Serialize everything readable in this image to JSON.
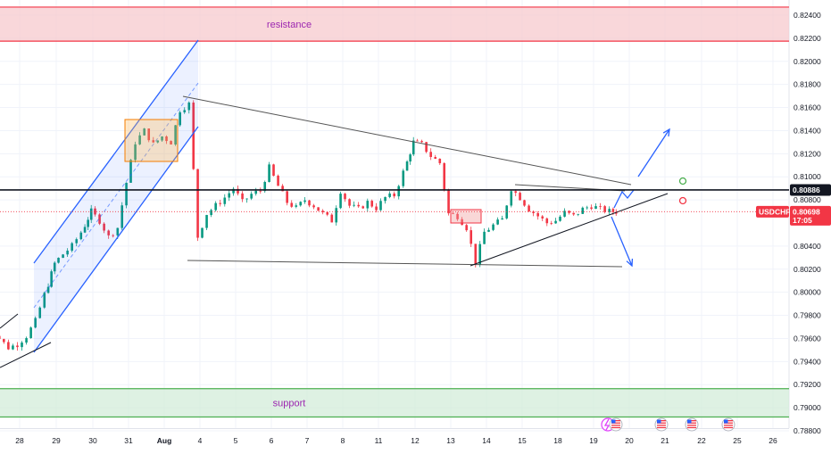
{
  "chart_data": {
    "type": "candlestick",
    "symbol": "USDCHF",
    "y_ticks": [
      "0.82400",
      "0.82200",
      "0.82000",
      "0.81800",
      "0.81600",
      "0.81400",
      "0.81200",
      "0.81000",
      "0.80800",
      "0.80400",
      "0.80200",
      "0.80000",
      "0.79800",
      "0.79600",
      "0.79400",
      "0.79200",
      "0.79000",
      "0.78800"
    ],
    "x_ticks": [
      "28",
      "29",
      "30",
      "31",
      "Aug",
      "4",
      "5",
      "6",
      "7",
      "8",
      "11",
      "12",
      "13",
      "14",
      "15",
      "18",
      "19",
      "20",
      "21",
      "22",
      "25",
      "26"
    ],
    "ylim": [
      0.7877,
      0.8252
    ],
    "current_price": "0.80698",
    "current_price_value": 0.80698,
    "countdown": "17:05",
    "key_level": "0.80886",
    "key_level_value": 0.80886,
    "zones": [
      {
        "label": "resistance",
        "from": 0.82175,
        "to": 0.8247,
        "color": "#f7c9ce"
      },
      {
        "label": "support",
        "from": 0.7892,
        "to": 0.79165,
        "color": "#d3ecd9"
      }
    ],
    "price_path": [
      [
        "07-25 00",
        0.7978
      ],
      [
        "07-25 06",
        0.7969
      ],
      [
        "07-25 12",
        0.796
      ],
      [
        "07-25 18",
        0.7952
      ],
      [
        "07-28 00",
        0.7955
      ],
      [
        "07-28 06",
        0.7962
      ],
      [
        "07-28 12",
        0.7975
      ],
      [
        "07-28 18",
        0.7998
      ],
      [
        "07-29 00",
        0.8025
      ],
      [
        "07-29 06",
        0.8033
      ],
      [
        "07-29 12",
        0.804
      ],
      [
        "07-29 18",
        0.8052
      ],
      [
        "07-30 00",
        0.807
      ],
      [
        "07-30 06",
        0.8062
      ],
      [
        "07-30 12",
        0.8048
      ],
      [
        "07-30 18",
        0.8056
      ],
      [
        "07-31 00",
        0.8095
      ],
      [
        "07-31 06",
        0.813
      ],
      [
        "07-31 12",
        0.814
      ],
      [
        "07-31 18",
        0.8128
      ],
      [
        "08-01 00",
        0.8135
      ],
      [
        "08-01 06",
        0.813
      ],
      [
        "08-01 12",
        0.8158
      ],
      [
        "08-01 18",
        0.8163
      ],
      [
        "08-04 00",
        0.8048
      ],
      [
        "08-04 06",
        0.8068
      ],
      [
        "08-04 12",
        0.8075
      ],
      [
        "08-04 18",
        0.8082
      ],
      [
        "08-05 00",
        0.809
      ],
      [
        "08-05 06",
        0.8078
      ],
      [
        "08-05 12",
        0.8085
      ],
      [
        "08-05 18",
        0.8088
      ],
      [
        "08-06 00",
        0.8108
      ],
      [
        "08-06 06",
        0.8092
      ],
      [
        "08-06 12",
        0.8078
      ],
      [
        "08-06 18",
        0.8073
      ],
      [
        "08-07 00",
        0.808
      ],
      [
        "08-07 06",
        0.8075
      ],
      [
        "08-07 12",
        0.8068
      ],
      [
        "08-07 18",
        0.8062
      ],
      [
        "08-08 00",
        0.8088
      ],
      [
        "08-08 06",
        0.8075
      ],
      [
        "08-08 12",
        0.8072
      ],
      [
        "08-08 18",
        0.8078
      ],
      [
        "08-11 00",
        0.8073
      ],
      [
        "08-11 06",
        0.8082
      ],
      [
        "08-11 12",
        0.8084
      ],
      [
        "08-11 18",
        0.8104
      ],
      [
        "08-12 00",
        0.813
      ],
      [
        "08-12 06",
        0.8128
      ],
      [
        "08-12 12",
        0.8118
      ],
      [
        "08-12 18",
        0.8112
      ],
      [
        "08-13 00",
        0.8068
      ],
      [
        "08-13 06",
        0.8066
      ],
      [
        "08-13 12",
        0.8056
      ],
      [
        "08-13 18",
        0.8026
      ],
      [
        "08-14 00",
        0.8052
      ],
      [
        "08-14 06",
        0.8058
      ],
      [
        "08-14 12",
        0.8063
      ],
      [
        "08-14 18",
        0.809
      ],
      [
        "08-15 00",
        0.8082
      ],
      [
        "08-15 06",
        0.8072
      ],
      [
        "08-15 12",
        0.8066
      ],
      [
        "08-15 18",
        0.806
      ],
      [
        "08-18 00",
        0.8062
      ],
      [
        "08-18 06",
        0.8069
      ],
      [
        "08-18 12",
        0.8066
      ],
      [
        "08-18 18",
        0.8072
      ],
      [
        "08-19 00",
        0.8075
      ],
      [
        "08-19 06",
        0.8072
      ],
      [
        "08-19 12",
        0.807
      ],
      [
        "08-19 16",
        0.80698
      ]
    ],
    "annotations": [
      {
        "type": "ascending-channel",
        "color": "#2962ff"
      },
      {
        "type": "symmetrical-triangle",
        "color": "#555555"
      },
      {
        "type": "breakout-arrow-up",
        "color": "#2962ff"
      },
      {
        "type": "breakdown-arrow-down",
        "color": "#2962ff"
      },
      {
        "type": "box",
        "color": "#ffb74d"
      },
      {
        "type": "box",
        "color": "#ef9a9a"
      }
    ],
    "colors": {
      "up": "#089981",
      "down": "#f23645",
      "channel": "#2962ff",
      "triangle": "#555555"
    },
    "grid": true,
    "icons": [
      "lightning-icon",
      "us-flag-icon"
    ]
  }
}
